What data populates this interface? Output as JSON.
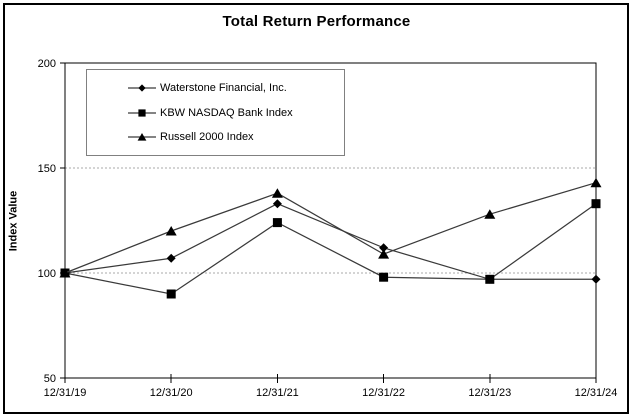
{
  "chart_data": {
    "type": "line",
    "title": "Total Return Performance",
    "ylabel": "Index Value",
    "xlabel": "",
    "categories": [
      "12/31/19",
      "12/31/20",
      "12/31/21",
      "12/31/22",
      "12/31/23",
      "12/31/24"
    ],
    "series": [
      {
        "name": "Waterstone Financial, Inc.",
        "marker": "diamond",
        "values": [
          100,
          107,
          133,
          112,
          97,
          97
        ]
      },
      {
        "name": "KBW NASDAQ Bank Index",
        "marker": "square",
        "values": [
          100,
          90,
          124,
          98,
          97,
          133
        ]
      },
      {
        "name": "Russell 2000 Index",
        "marker": "triangle",
        "values": [
          100,
          120,
          138,
          109,
          128,
          143
        ]
      }
    ],
    "ylim": [
      50,
      200
    ],
    "yticks": [
      50,
      100,
      150,
      200
    ],
    "gridlines": [
      100,
      150
    ],
    "grid": "horizontal-dashed",
    "legend_position": "top-left-inside",
    "colors": {
      "line": "#3a3a3a",
      "marker": "#000000",
      "grid": "#aaaaaa",
      "axis": "#000000",
      "legend_border": "#808080",
      "background": "#ffffff"
    }
  }
}
